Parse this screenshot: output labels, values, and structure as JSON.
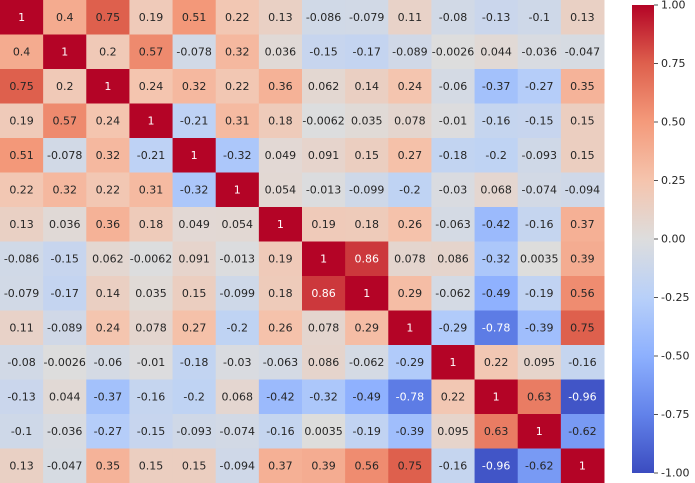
{
  "chart_data": {
    "type": "heatmap",
    "title": "",
    "xlabel": "",
    "ylabel": "",
    "colormap": "coolwarm",
    "color_low": "#3b4cc0",
    "color_mid": "#dddcdc",
    "color_high": "#b40426",
    "vmin": -1.0,
    "vmax": 1.0,
    "colorbar_ticks": [
      "1.00",
      "0.75",
      "0.50",
      "0.25",
      "0.00",
      "-0.25",
      "-0.50",
      "-0.75",
      "-1.00"
    ],
    "matrix": [
      [
        "1",
        "0.4",
        "0.75",
        "0.19",
        "0.51",
        "0.22",
        "0.13",
        "-0.086",
        "-0.079",
        "0.11",
        "-0.08",
        "-0.13",
        "-0.1",
        "0.13"
      ],
      [
        "0.4",
        "1",
        "0.2",
        "0.57",
        "-0.078",
        "0.32",
        "0.036",
        "-0.15",
        "-0.17",
        "-0.089",
        "-0.0026",
        "0.044",
        "-0.036",
        "-0.047"
      ],
      [
        "0.75",
        "0.2",
        "1",
        "0.24",
        "0.32",
        "0.22",
        "0.36",
        "0.062",
        "0.14",
        "0.24",
        "-0.06",
        "-0.37",
        "-0.27",
        "0.35"
      ],
      [
        "0.19",
        "0.57",
        "0.24",
        "1",
        "-0.21",
        "0.31",
        "0.18",
        "-0.0062",
        "0.035",
        "0.078",
        "-0.01",
        "-0.16",
        "-0.15",
        "0.15"
      ],
      [
        "0.51",
        "-0.078",
        "0.32",
        "-0.21",
        "1",
        "-0.32",
        "0.049",
        "0.091",
        "0.15",
        "0.27",
        "-0.18",
        "-0.2",
        "-0.093",
        "0.15"
      ],
      [
        "0.22",
        "0.32",
        "0.22",
        "0.31",
        "-0.32",
        "1",
        "0.054",
        "-0.013",
        "-0.099",
        "-0.2",
        "-0.03",
        "0.068",
        "-0.074",
        "-0.094"
      ],
      [
        "0.13",
        "0.036",
        "0.36",
        "0.18",
        "0.049",
        "0.054",
        "1",
        "0.19",
        "0.18",
        "0.26",
        "-0.063",
        "-0.42",
        "-0.16",
        "0.37"
      ],
      [
        "-0.086",
        "-0.15",
        "0.062",
        "-0.0062",
        "0.091",
        "-0.013",
        "0.19",
        "1",
        "0.86",
        "0.078",
        "0.086",
        "-0.32",
        "0.0035",
        "0.39"
      ],
      [
        "-0.079",
        "-0.17",
        "0.14",
        "0.035",
        "0.15",
        "-0.099",
        "0.18",
        "0.86",
        "1",
        "0.29",
        "-0.062",
        "-0.49",
        "-0.19",
        "0.56"
      ],
      [
        "0.11",
        "-0.089",
        "0.24",
        "0.078",
        "0.27",
        "-0.2",
        "0.26",
        "0.078",
        "0.29",
        "1",
        "-0.29",
        "-0.78",
        "-0.39",
        "0.75"
      ],
      [
        "-0.08",
        "-0.0026",
        "-0.06",
        "-0.01",
        "-0.18",
        "-0.03",
        "-0.063",
        "0.086",
        "-0.062",
        "-0.29",
        "1",
        "0.22",
        "0.095",
        "-0.16"
      ],
      [
        "-0.13",
        "0.044",
        "-0.37",
        "-0.16",
        "-0.2",
        "0.068",
        "-0.42",
        "-0.32",
        "-0.49",
        "-0.78",
        "0.22",
        "1",
        "0.63",
        "-0.96"
      ],
      [
        "-0.1",
        "-0.036",
        "-0.27",
        "-0.15",
        "-0.093",
        "-0.074",
        "-0.16",
        "0.0035",
        "-0.19",
        "-0.39",
        "0.095",
        "0.63",
        "1",
        "-0.62"
      ],
      [
        "0.13",
        "-0.047",
        "0.35",
        "0.15",
        "0.15",
        "-0.094",
        "0.37",
        "0.39",
        "0.56",
        "0.75",
        "-0.16",
        "-0.96",
        "-0.62",
        "1"
      ]
    ]
  }
}
